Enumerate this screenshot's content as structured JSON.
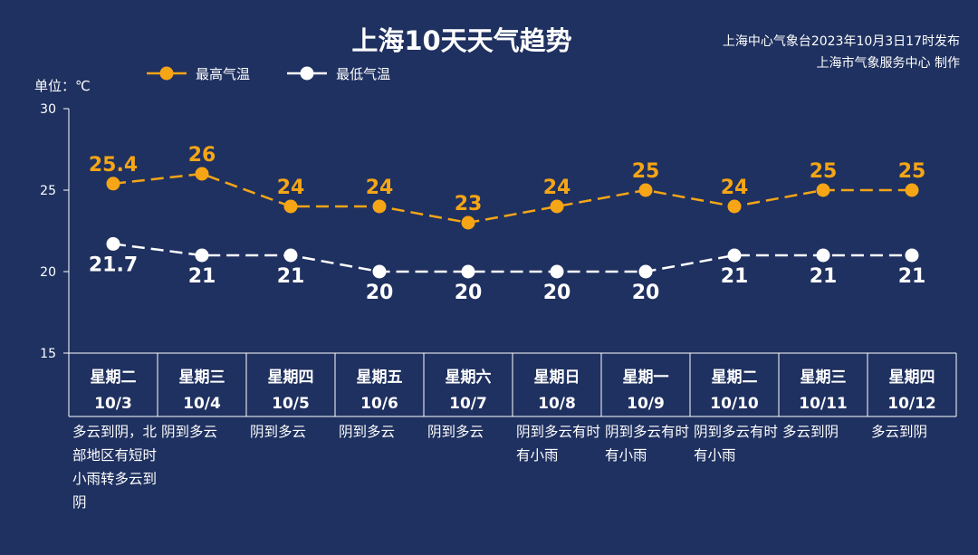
{
  "header": {
    "title": "上海10天天气趋势",
    "publisher_line1": "上海中心气象台2023年10月3日17时发布",
    "publisher_line2": "上海市气象服务中心 制作"
  },
  "legend": {
    "high_label": "最高气温",
    "low_label": "最低气温"
  },
  "unit_label": "单位：℃",
  "colors": {
    "background": "#1f3160",
    "high": "#f5a516",
    "low": "#ffffff",
    "axis": "#ffffff"
  },
  "chart_data": {
    "type": "line",
    "title": "上海10天天气趋势",
    "ylabel": "单位：℃",
    "ylim": [
      15,
      30
    ],
    "yticks": [
      15,
      20,
      25,
      30
    ],
    "grid": false,
    "legend_position": "top-left",
    "days": [
      {
        "weekday": "星期二",
        "date": "10/3",
        "condition": "多云到阴，北部地区有短时小雨转多云到阴"
      },
      {
        "weekday": "星期三",
        "date": "10/4",
        "condition": "阴到多云"
      },
      {
        "weekday": "星期四",
        "date": "10/5",
        "condition": "阴到多云"
      },
      {
        "weekday": "星期五",
        "date": "10/6",
        "condition": "阴到多云"
      },
      {
        "weekday": "星期六",
        "date": "10/7",
        "condition": "阴到多云"
      },
      {
        "weekday": "星期日",
        "date": "10/8",
        "condition": "阴到多云有时有小雨"
      },
      {
        "weekday": "星期一",
        "date": "10/9",
        "condition": "阴到多云有时有小雨"
      },
      {
        "weekday": "星期二",
        "date": "10/10",
        "condition": "阴到多云有时有小雨"
      },
      {
        "weekday": "星期三",
        "date": "10/11",
        "condition": "多云到阴"
      },
      {
        "weekday": "星期四",
        "date": "10/12",
        "condition": "多云到阴"
      }
    ],
    "series": [
      {
        "name": "最高气温",
        "values": [
          25.4,
          26,
          24,
          24,
          23,
          24,
          25,
          24,
          25,
          25
        ],
        "labels": [
          "25.4",
          "26",
          "24",
          "24",
          "23",
          "24",
          "25",
          "24",
          "25",
          "25"
        ]
      },
      {
        "name": "最低气温",
        "values": [
          21.7,
          21,
          21,
          20,
          20,
          20,
          20,
          21,
          21,
          21
        ],
        "labels": [
          "21.7",
          "21",
          "21",
          "20",
          "20",
          "20",
          "20",
          "21",
          "21",
          "21"
        ]
      }
    ]
  }
}
